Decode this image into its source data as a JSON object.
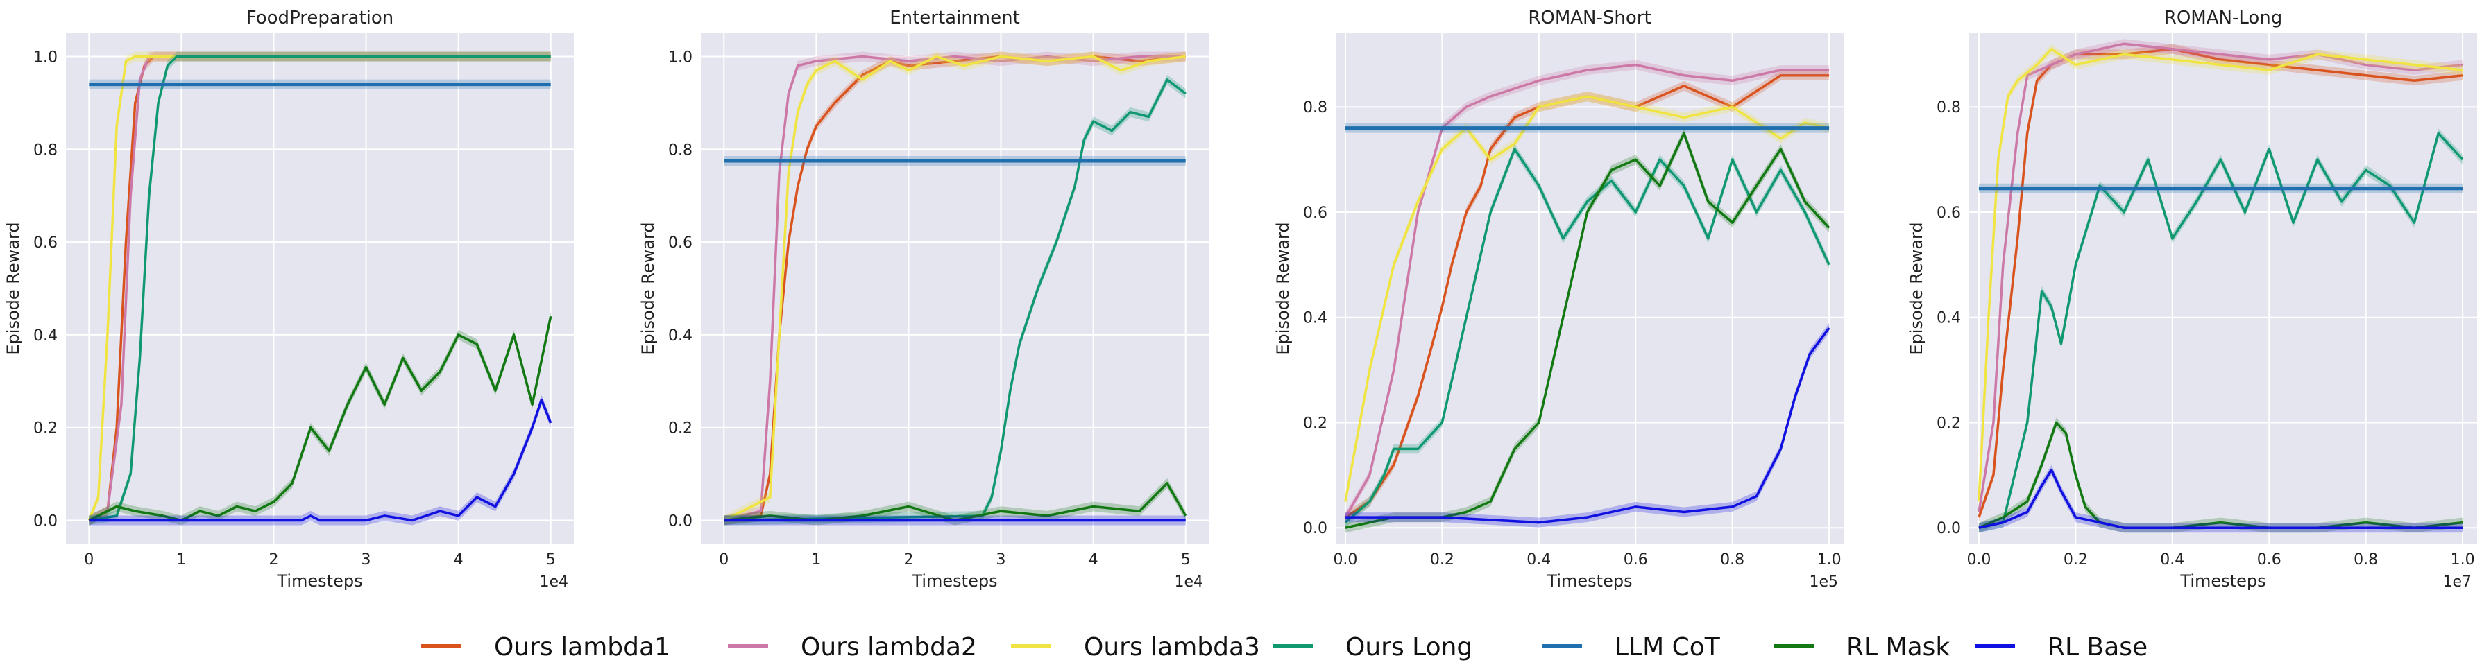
{
  "legend": [
    {
      "name": "Ours lambda1",
      "color": "#d9531e"
    },
    {
      "name": "Ours lambda2",
      "color": "#cc79a7"
    },
    {
      "name": "Ours lambda3",
      "color": "#f0e442"
    },
    {
      "name": "Ours Long",
      "color": "#109870"
    },
    {
      "name": "LLM CoT",
      "color": "#1f6fae"
    },
    {
      "name": "RL Mask",
      "color": "#127812"
    },
    {
      "name": "RL Base",
      "color": "#1010e0"
    }
  ],
  "legend_placement": "bottom-center",
  "grid": true,
  "chart_data": [
    {
      "type": "line",
      "title": "FoodPreparation",
      "xlabel": "Timesteps",
      "ylabel": "Episode Reward",
      "x_offset_label": "1e4",
      "xticks": [
        0,
        1,
        2,
        3,
        4,
        5
      ],
      "yticks": [
        0.0,
        0.2,
        0.4,
        0.6,
        0.8,
        1.0
      ],
      "xlim": [
        -0.25,
        5.25
      ],
      "ylim": [
        -0.05,
        1.05
      ],
      "series": [
        {
          "name": "Ours lambda1",
          "x": [
            0,
            0.2,
            0.3,
            0.4,
            0.5,
            0.6,
            0.7,
            5
          ],
          "y": [
            0.0,
            0.02,
            0.2,
            0.6,
            0.9,
            0.98,
            1.0,
            1.0
          ]
        },
        {
          "name": "Ours lambda2",
          "x": [
            0,
            0.2,
            0.35,
            0.45,
            0.55,
            0.65,
            5
          ],
          "y": [
            0.0,
            0.02,
            0.25,
            0.7,
            0.95,
            1.0,
            1.0
          ]
        },
        {
          "name": "Ours lambda3",
          "x": [
            0,
            0.1,
            0.2,
            0.3,
            0.4,
            0.5,
            5
          ],
          "y": [
            0.0,
            0.05,
            0.4,
            0.85,
            0.99,
            1.0,
            1.0
          ]
        },
        {
          "name": "Ours Long",
          "x": [
            0,
            0.3,
            0.45,
            0.55,
            0.65,
            0.75,
            0.85,
            0.95,
            5
          ],
          "y": [
            0.0,
            0.01,
            0.1,
            0.35,
            0.7,
            0.9,
            0.98,
            1.0,
            1.0
          ]
        },
        {
          "name": "LLM CoT",
          "x": [
            0,
            5
          ],
          "y": [
            0.94,
            0.94
          ]
        },
        {
          "name": "RL Mask",
          "x": [
            0,
            0.3,
            0.5,
            0.8,
            1.0,
            1.2,
            1.4,
            1.6,
            1.8,
            2.0,
            2.2,
            2.4,
            2.6,
            2.8,
            3.0,
            3.2,
            3.4,
            3.6,
            3.8,
            4.0,
            4.2,
            4.4,
            4.6,
            4.8,
            5.0
          ],
          "y": [
            0.0,
            0.03,
            0.02,
            0.01,
            0.0,
            0.02,
            0.01,
            0.03,
            0.02,
            0.04,
            0.08,
            0.2,
            0.15,
            0.25,
            0.33,
            0.25,
            0.35,
            0.28,
            0.32,
            0.4,
            0.38,
            0.28,
            0.4,
            0.25,
            0.44
          ]
        },
        {
          "name": "RL Base",
          "x": [
            0,
            2.3,
            2.4,
            2.5,
            3.0,
            3.2,
            3.5,
            3.8,
            4.0,
            4.2,
            4.4,
            4.6,
            4.8,
            4.9,
            5.0
          ],
          "y": [
            0.0,
            0.0,
            0.01,
            0.0,
            0.0,
            0.01,
            0.0,
            0.02,
            0.01,
            0.05,
            0.03,
            0.1,
            0.2,
            0.26,
            0.21
          ]
        }
      ]
    },
    {
      "type": "line",
      "title": "Entertainment",
      "xlabel": "Timesteps",
      "ylabel": "Episode Reward",
      "x_offset_label": "1e4",
      "xticks": [
        0,
        1,
        2,
        3,
        4,
        5
      ],
      "yticks": [
        0.0,
        0.2,
        0.4,
        0.6,
        0.8,
        1.0
      ],
      "xlim": [
        -0.25,
        5.25
      ],
      "ylim": [
        -0.05,
        1.05
      ],
      "series": [
        {
          "name": "Ours lambda1",
          "x": [
            0,
            0.4,
            0.5,
            0.6,
            0.7,
            0.8,
            0.9,
            1.0,
            1.2,
            1.5,
            1.8,
            2.0,
            2.5,
            3.0,
            3.5,
            4.0,
            4.5,
            5.0
          ],
          "y": [
            0.0,
            0.01,
            0.1,
            0.4,
            0.6,
            0.72,
            0.8,
            0.85,
            0.9,
            0.96,
            0.99,
            0.98,
            0.99,
            1.0,
            0.99,
            1.0,
            0.99,
            1.0
          ]
        },
        {
          "name": "Ours lambda2",
          "x": [
            0,
            0.4,
            0.5,
            0.6,
            0.7,
            0.8,
            1.0,
            1.5,
            2.0,
            2.5,
            3.0,
            3.5,
            4.0,
            4.5,
            5.0
          ],
          "y": [
            0.0,
            0.02,
            0.3,
            0.75,
            0.92,
            0.98,
            0.99,
            1.0,
            0.99,
            1.0,
            0.99,
            1.0,
            0.99,
            1.0,
            1.0
          ]
        },
        {
          "name": "Ours lambda3",
          "x": [
            0,
            0.5,
            0.6,
            0.7,
            0.8,
            0.9,
            1.0,
            1.2,
            1.5,
            1.8,
            2.0,
            2.3,
            2.6,
            3.0,
            3.5,
            4.0,
            4.3,
            4.6,
            5.0
          ],
          "y": [
            0.0,
            0.05,
            0.4,
            0.75,
            0.88,
            0.94,
            0.97,
            0.99,
            0.95,
            0.99,
            0.97,
            1.0,
            0.98,
            1.0,
            0.99,
            1.0,
            0.97,
            0.99,
            1.0
          ]
        },
        {
          "name": "Ours Long",
          "x": [
            0,
            2.8,
            2.9,
            3.0,
            3.1,
            3.2,
            3.4,
            3.6,
            3.8,
            3.9,
            4.0,
            4.2,
            4.4,
            4.6,
            4.8,
            5.0
          ],
          "y": [
            0.0,
            0.01,
            0.05,
            0.15,
            0.28,
            0.38,
            0.5,
            0.6,
            0.72,
            0.82,
            0.86,
            0.84,
            0.88,
            0.87,
            0.95,
            0.92
          ]
        },
        {
          "name": "LLM CoT",
          "x": [
            0,
            5
          ],
          "y": [
            0.775,
            0.775
          ]
        },
        {
          "name": "RL Mask",
          "x": [
            0,
            0.5,
            1.0,
            1.5,
            2.0,
            2.5,
            3.0,
            3.5,
            4.0,
            4.5,
            4.8,
            5.0
          ],
          "y": [
            0.0,
            0.01,
            0.0,
            0.01,
            0.03,
            0.0,
            0.02,
            0.01,
            0.03,
            0.02,
            0.08,
            0.01
          ]
        },
        {
          "name": "RL Base",
          "x": [
            0,
            5
          ],
          "y": [
            0.0,
            0.0
          ]
        }
      ]
    },
    {
      "type": "line",
      "title": "ROMAN-Short",
      "xlabel": "Timesteps",
      "ylabel": "Episode Reward",
      "x_offset_label": "1e5",
      "xticks": [
        0.0,
        0.2,
        0.4,
        0.6,
        0.8,
        1.0
      ],
      "yticks": [
        0.0,
        0.2,
        0.4,
        0.6,
        0.8
      ],
      "xlim": [
        -0.02,
        1.03
      ],
      "ylim": [
        -0.03,
        0.94
      ],
      "series": [
        {
          "name": "Ours lambda1",
          "x": [
            0,
            0.05,
            0.1,
            0.15,
            0.18,
            0.2,
            0.22,
            0.25,
            0.28,
            0.3,
            0.35,
            0.4,
            0.5,
            0.6,
            0.7,
            0.8,
            0.9,
            1.0
          ],
          "y": [
            0.02,
            0.05,
            0.12,
            0.25,
            0.35,
            0.42,
            0.5,
            0.6,
            0.65,
            0.72,
            0.78,
            0.8,
            0.82,
            0.8,
            0.84,
            0.8,
            0.86,
            0.86
          ]
        },
        {
          "name": "Ours lambda2",
          "x": [
            0,
            0.05,
            0.1,
            0.15,
            0.2,
            0.25,
            0.3,
            0.4,
            0.5,
            0.6,
            0.7,
            0.8,
            0.9,
            1.0
          ],
          "y": [
            0.02,
            0.1,
            0.3,
            0.6,
            0.76,
            0.8,
            0.82,
            0.85,
            0.87,
            0.88,
            0.86,
            0.85,
            0.87,
            0.87
          ]
        },
        {
          "name": "Ours lambda3",
          "x": [
            0,
            0.05,
            0.1,
            0.15,
            0.2,
            0.25,
            0.3,
            0.35,
            0.4,
            0.5,
            0.6,
            0.7,
            0.8,
            0.9,
            0.95,
            1.0
          ],
          "y": [
            0.05,
            0.3,
            0.5,
            0.62,
            0.72,
            0.76,
            0.7,
            0.73,
            0.8,
            0.82,
            0.8,
            0.78,
            0.8,
            0.74,
            0.77,
            0.76
          ]
        },
        {
          "name": "Ours Long",
          "x": [
            0,
            0.05,
            0.08,
            0.1,
            0.15,
            0.2,
            0.25,
            0.3,
            0.35,
            0.4,
            0.45,
            0.5,
            0.55,
            0.6,
            0.65,
            0.7,
            0.75,
            0.8,
            0.85,
            0.9,
            0.95,
            1.0
          ],
          "y": [
            0.01,
            0.05,
            0.1,
            0.15,
            0.15,
            0.2,
            0.4,
            0.6,
            0.72,
            0.65,
            0.55,
            0.62,
            0.66,
            0.6,
            0.7,
            0.65,
            0.55,
            0.7,
            0.6,
            0.68,
            0.6,
            0.5
          ]
        },
        {
          "name": "LLM CoT",
          "x": [
            0,
            1.0
          ],
          "y": [
            0.76,
            0.76
          ]
        },
        {
          "name": "RL Mask",
          "x": [
            0,
            0.1,
            0.2,
            0.25,
            0.3,
            0.35,
            0.4,
            0.45,
            0.5,
            0.55,
            0.6,
            0.65,
            0.7,
            0.75,
            0.8,
            0.85,
            0.9,
            0.95,
            1.0
          ],
          "y": [
            0.0,
            0.02,
            0.02,
            0.03,
            0.05,
            0.15,
            0.2,
            0.4,
            0.6,
            0.68,
            0.7,
            0.65,
            0.75,
            0.62,
            0.58,
            0.65,
            0.72,
            0.62,
            0.57
          ]
        },
        {
          "name": "RL Base",
          "x": [
            0,
            0.2,
            0.4,
            0.5,
            0.6,
            0.7,
            0.8,
            0.85,
            0.9,
            0.93,
            0.96,
            1.0
          ],
          "y": [
            0.02,
            0.02,
            0.01,
            0.02,
            0.04,
            0.03,
            0.04,
            0.06,
            0.15,
            0.25,
            0.33,
            0.38
          ]
        }
      ]
    },
    {
      "type": "line",
      "title": "ROMAN-Long",
      "xlabel": "Timesteps",
      "ylabel": "Episode Reward",
      "x_offset_label": "1e7",
      "xticks": [
        0.0,
        0.2,
        0.4,
        0.6,
        0.8,
        1.0
      ],
      "yticks": [
        0.0,
        0.2,
        0.4,
        0.6,
        0.8
      ],
      "xlim": [
        -0.02,
        1.03
      ],
      "ylim": [
        -0.03,
        0.94
      ],
      "series": [
        {
          "name": "Ours lambda1",
          "x": [
            0,
            0.03,
            0.05,
            0.08,
            0.1,
            0.12,
            0.15,
            0.2,
            0.3,
            0.4,
            0.5,
            0.6,
            0.7,
            0.8,
            0.9,
            1.0
          ],
          "y": [
            0.02,
            0.1,
            0.3,
            0.55,
            0.75,
            0.85,
            0.88,
            0.9,
            0.9,
            0.91,
            0.89,
            0.88,
            0.87,
            0.86,
            0.85,
            0.86
          ]
        },
        {
          "name": "Ours lambda2",
          "x": [
            0,
            0.03,
            0.05,
            0.08,
            0.1,
            0.15,
            0.2,
            0.3,
            0.4,
            0.5,
            0.6,
            0.7,
            0.8,
            0.9,
            1.0
          ],
          "y": [
            0.03,
            0.2,
            0.5,
            0.75,
            0.86,
            0.88,
            0.9,
            0.92,
            0.91,
            0.9,
            0.89,
            0.9,
            0.88,
            0.87,
            0.88
          ]
        },
        {
          "name": "Ours lambda3",
          "x": [
            0,
            0.02,
            0.04,
            0.06,
            0.08,
            0.12,
            0.15,
            0.2,
            0.3,
            0.4,
            0.5,
            0.6,
            0.7,
            0.8,
            0.9,
            1.0
          ],
          "y": [
            0.05,
            0.4,
            0.7,
            0.82,
            0.85,
            0.88,
            0.91,
            0.88,
            0.9,
            0.89,
            0.88,
            0.87,
            0.9,
            0.89,
            0.88,
            0.87
          ]
        },
        {
          "name": "Ours Long",
          "x": [
            0,
            0.05,
            0.1,
            0.13,
            0.15,
            0.17,
            0.2,
            0.25,
            0.3,
            0.35,
            0.4,
            0.45,
            0.5,
            0.55,
            0.6,
            0.65,
            0.7,
            0.75,
            0.8,
            0.85,
            0.9,
            0.95,
            1.0
          ],
          "y": [
            0.0,
            0.01,
            0.2,
            0.45,
            0.42,
            0.35,
            0.5,
            0.65,
            0.6,
            0.7,
            0.55,
            0.62,
            0.7,
            0.6,
            0.72,
            0.58,
            0.7,
            0.62,
            0.68,
            0.65,
            0.58,
            0.75,
            0.7
          ]
        },
        {
          "name": "LLM CoT",
          "x": [
            0,
            1.0
          ],
          "y": [
            0.645,
            0.645
          ]
        },
        {
          "name": "RL Mask",
          "x": [
            0,
            0.05,
            0.1,
            0.13,
            0.16,
            0.18,
            0.2,
            0.22,
            0.25,
            0.3,
            0.4,
            0.5,
            0.6,
            0.7,
            0.8,
            0.9,
            1.0
          ],
          "y": [
            0.0,
            0.02,
            0.05,
            0.12,
            0.2,
            0.18,
            0.1,
            0.04,
            0.01,
            0.0,
            0.0,
            0.01,
            0.0,
            0.0,
            0.01,
            0.0,
            0.01
          ]
        },
        {
          "name": "RL Base",
          "x": [
            0,
            0.05,
            0.1,
            0.13,
            0.15,
            0.17,
            0.2,
            0.25,
            0.3,
            0.4,
            1.0
          ],
          "y": [
            0.0,
            0.01,
            0.03,
            0.08,
            0.11,
            0.07,
            0.02,
            0.01,
            0.0,
            0.0,
            0.0
          ]
        }
      ]
    }
  ]
}
